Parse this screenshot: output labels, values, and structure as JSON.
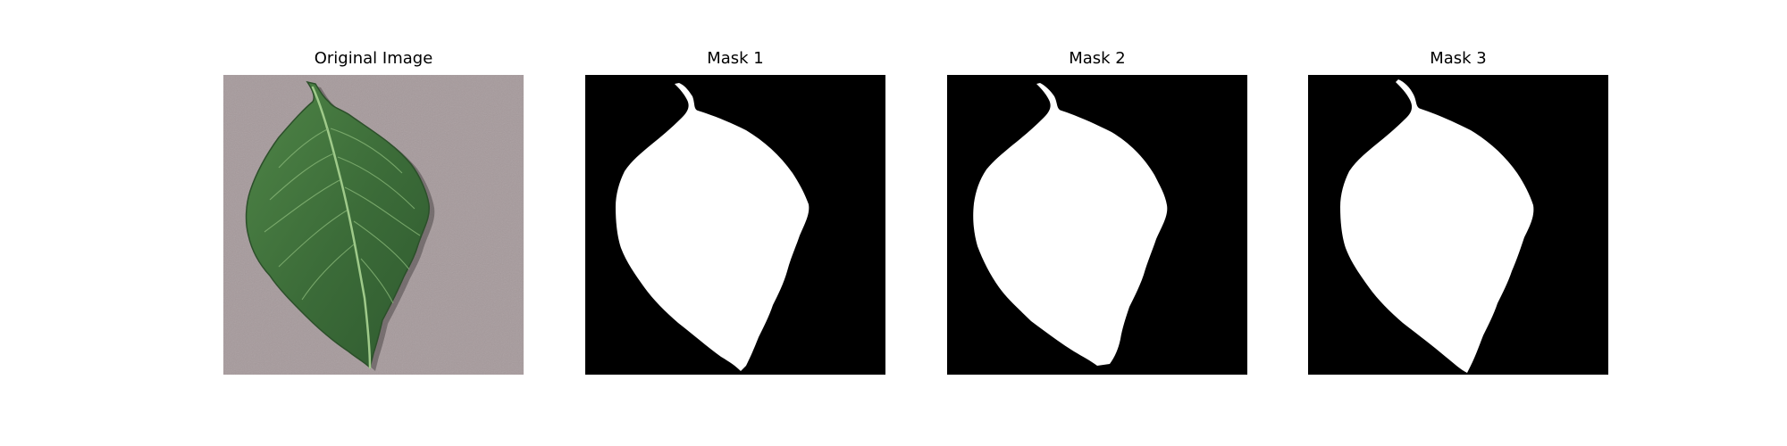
{
  "figure": {
    "panels": [
      {
        "title": "Original Image",
        "kind": "photo"
      },
      {
        "title": "Mask 1",
        "kind": "mask"
      },
      {
        "title": "Mask 2",
        "kind": "mask"
      },
      {
        "title": "Mask 3",
        "kind": "mask"
      }
    ],
    "colors": {
      "background": "#ffffff",
      "photo_background": "#a69a9c",
      "leaf": "#3f6f3c",
      "leaf_vein": "#9fca8a",
      "mask_background": "#000000",
      "mask_foreground": "#ffffff"
    }
  }
}
